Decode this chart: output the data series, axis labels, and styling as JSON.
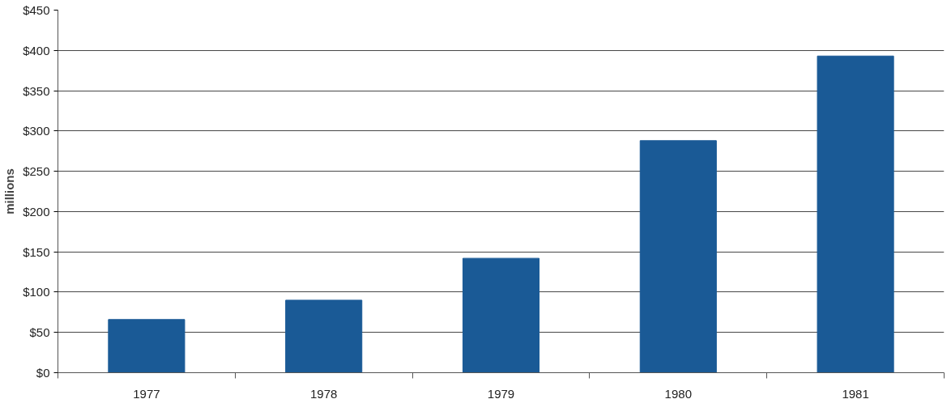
{
  "chart_data": {
    "type": "bar",
    "ylabel": "millions",
    "categories": [
      "1977",
      "1978",
      "1979",
      "1980",
      "1981"
    ],
    "values": [
      66,
      90,
      142,
      288,
      393
    ],
    "color": "#1a5a96",
    "ylim": [
      0,
      450
    ],
    "yticks": [
      {
        "value": 0,
        "label": "$0"
      },
      {
        "value": 50,
        "label": "$50"
      },
      {
        "value": 100,
        "label": "$100"
      },
      {
        "value": 150,
        "label": "$150"
      },
      {
        "value": 200,
        "label": "$200"
      },
      {
        "value": 250,
        "label": "$250"
      },
      {
        "value": 300,
        "label": "$300"
      },
      {
        "value": 350,
        "label": "$350"
      },
      {
        "value": 400,
        "label": "$400"
      },
      {
        "value": 450,
        "label": "$450"
      }
    ],
    "grid": "y"
  }
}
